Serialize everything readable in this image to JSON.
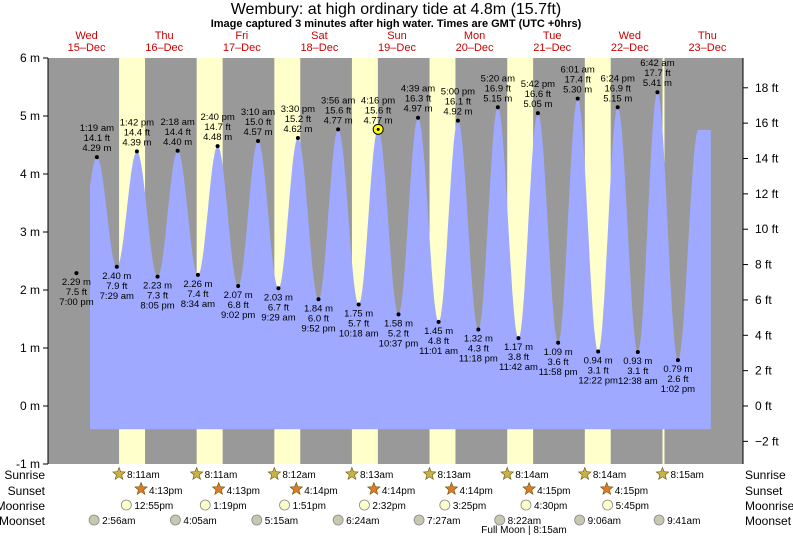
{
  "title": "Wembury: at high  ordinary tide at 4.8m (15.7ft)",
  "subtitle": "Image captured 3 minutes after high water. Times are GMT (UTC +0hrs)",
  "days": [
    {
      "dow": "Wed",
      "date": "15–Dec"
    },
    {
      "dow": "Thu",
      "date": "16–Dec"
    },
    {
      "dow": "Fri",
      "date": "17–Dec"
    },
    {
      "dow": "Sat",
      "date": "18–Dec"
    },
    {
      "dow": "Sun",
      "date": "19–Dec"
    },
    {
      "dow": "Mon",
      "date": "20–Dec"
    },
    {
      "dow": "Tue",
      "date": "21–Dec"
    },
    {
      "dow": "Wed",
      "date": "22–Dec"
    },
    {
      "dow": "Thu",
      "date": "23–Dec"
    }
  ],
  "colors": {
    "tide_fill": "#9fa9ff",
    "daylight": "#ffffcc",
    "night": "#999999",
    "day_label": "#cc0000",
    "current_marker": "#ffff00"
  },
  "chart_data": {
    "type": "area",
    "title": "Wembury: at high  ordinary tide at 4.8m (15.7ft)",
    "ylim_m": [
      -1,
      6
    ],
    "y_ticks_m": [
      "-1 m",
      "0 m",
      "1 m",
      "2 m",
      "3 m",
      "4 m",
      "5 m",
      "6 m"
    ],
    "ylim_ft": [
      -3.28,
      19.69
    ],
    "y_ticks_ft": [
      "−2 ft",
      "0 ft",
      "2 ft",
      "4 ft",
      "6 ft",
      "8 ft",
      "10 ft",
      "12 ft",
      "14 ft",
      "16 ft",
      "18 ft"
    ],
    "x_unit": "days from midnight 15-Dec (GMT)",
    "current_time": "19-Dec 4:19pm",
    "current_height_m": 4.77,
    "tides": [
      {
        "kind": "low",
        "x": 0.792,
        "m": 2.29,
        "ft": "7.5 ft",
        "time": "7:00 pm"
      },
      {
        "kind": "high",
        "x": 1.055,
        "m": 4.29,
        "ft": "14.1 ft",
        "time": "1:19 am"
      },
      {
        "kind": "low",
        "x": 1.312,
        "m": 2.4,
        "ft": "7.9 ft",
        "time": "7:29 am"
      },
      {
        "kind": "high",
        "x": 1.571,
        "m": 4.39,
        "ft": "14.4 ft",
        "time": "1:42 pm"
      },
      {
        "kind": "low",
        "x": 1.837,
        "m": 2.23,
        "ft": "7.3 ft",
        "time": "8:05 pm"
      },
      {
        "kind": "high",
        "x": 2.096,
        "m": 4.4,
        "ft": "14.4 ft",
        "time": "2:18 am"
      },
      {
        "kind": "low",
        "x": 2.357,
        "m": 2.26,
        "ft": "7.4 ft",
        "time": "8:34 am"
      },
      {
        "kind": "high",
        "x": 2.611,
        "m": 4.48,
        "ft": "14.7 ft",
        "time": "2:40 pm"
      },
      {
        "kind": "low",
        "x": 2.876,
        "m": 2.07,
        "ft": "6.8 ft",
        "time": "9:02 pm"
      },
      {
        "kind": "high",
        "x": 3.132,
        "m": 4.57,
        "ft": "15.0 ft",
        "time": "3:10 am"
      },
      {
        "kind": "low",
        "x": 3.395,
        "m": 2.03,
        "ft": "6.7 ft",
        "time": "9:29 am"
      },
      {
        "kind": "high",
        "x": 3.646,
        "m": 4.62,
        "ft": "15.2 ft",
        "time": "3:30 pm"
      },
      {
        "kind": "low",
        "x": 3.911,
        "m": 1.84,
        "ft": "6.0 ft",
        "time": "9:52 pm"
      },
      {
        "kind": "high",
        "x": 4.164,
        "m": 4.77,
        "ft": "15.6 ft",
        "time": "3:56 am"
      },
      {
        "kind": "low",
        "x": 4.429,
        "m": 1.75,
        "ft": "5.7 ft",
        "time": "10:18 am"
      },
      {
        "kind": "high",
        "x": 4.678,
        "m": 4.77,
        "ft": "15.6 ft",
        "time": "4:16 pm"
      },
      {
        "kind": "low",
        "x": 4.942,
        "m": 1.58,
        "ft": "5.2 ft",
        "time": "10:37 pm"
      },
      {
        "kind": "high",
        "x": 5.194,
        "m": 4.97,
        "ft": "16.3 ft",
        "time": "4:39 am"
      },
      {
        "kind": "low",
        "x": 5.459,
        "m": 1.45,
        "ft": "4.8 ft",
        "time": "11:01 am"
      },
      {
        "kind": "high",
        "x": 5.708,
        "m": 4.92,
        "ft": "16.1 ft",
        "time": "5:00 pm"
      },
      {
        "kind": "low",
        "x": 5.971,
        "m": 1.32,
        "ft": "4.3 ft",
        "time": "11:18 pm"
      },
      {
        "kind": "high",
        "x": 6.222,
        "m": 5.15,
        "ft": "16.9 ft",
        "time": "5:20 am"
      },
      {
        "kind": "low",
        "x": 6.488,
        "m": 1.17,
        "ft": "3.8 ft",
        "time": "11:42 am"
      },
      {
        "kind": "high",
        "x": 6.738,
        "m": 5.05,
        "ft": "16.6 ft",
        "time": "5:42 pm"
      },
      {
        "kind": "low",
        "x": 6.999,
        "m": 1.09,
        "ft": "3.6 ft",
        "time": "11:58 pm"
      },
      {
        "kind": "high",
        "x": 7.251,
        "m": 5.3,
        "ft": "17.4 ft",
        "time": "6:01 am"
      },
      {
        "kind": "low",
        "x": 7.515,
        "m": 0.94,
        "ft": "3.1 ft",
        "time": "12:22 pm"
      },
      {
        "kind": "high",
        "x": 7.767,
        "m": 5.15,
        "ft": "16.9 ft",
        "time": "6:24 pm"
      },
      {
        "kind": "low",
        "x": 8.026,
        "m": 0.93,
        "ft": "3.1 ft",
        "time": "12:38 am"
      },
      {
        "kind": "high",
        "x": 8.279,
        "m": 5.41,
        "ft": "17.7 ft",
        "time": "6:42 am"
      },
      {
        "kind": "low",
        "x": 8.543,
        "m": 0.79,
        "ft": "2.6 ft",
        "time": "1:02 pm"
      }
    ],
    "daylight": [
      {
        "sunrise": "8:11am",
        "sunset": "4:13pm",
        "rise_x": 1.341,
        "set_x": 1.676
      },
      {
        "sunrise": "8:11am",
        "sunset": "4:13pm",
        "rise_x": 2.341,
        "set_x": 2.676
      },
      {
        "sunrise": "8:12am",
        "sunset": "4:14pm",
        "rise_x": 3.342,
        "set_x": 3.676
      },
      {
        "sunrise": "8:13am",
        "sunset": "4:14pm",
        "rise_x": 4.342,
        "set_x": 4.676
      },
      {
        "sunrise": "8:13am",
        "sunset": "4:14pm",
        "rise_x": 5.342,
        "set_x": 5.676
      },
      {
        "sunrise": "8:14am",
        "sunset": "4:15pm",
        "rise_x": 6.343,
        "set_x": 6.677
      },
      {
        "sunrise": "8:14am",
        "sunset": "4:15pm",
        "rise_x": 7.343,
        "set_x": 7.677
      },
      {
        "sunrise": "8:15am",
        "sunset": "",
        "rise_x": 8.344,
        "set_x": null
      }
    ],
    "moonrise": [
      {
        "time": "12:55pm",
        "x": 1.538
      },
      {
        "time": "1:19pm",
        "x": 2.555
      },
      {
        "time": "1:51pm",
        "x": 3.577
      },
      {
        "time": "2:32pm",
        "x": 4.606
      },
      {
        "time": "3:25pm",
        "x": 5.642
      },
      {
        "time": "4:30pm",
        "x": 6.688
      },
      {
        "time": "5:45pm",
        "x": 7.74
      }
    ],
    "moonset": [
      {
        "time": "2:56am",
        "x": 1.122
      },
      {
        "time": "4:05am",
        "x": 2.17
      },
      {
        "time": "5:15am",
        "x": 3.219
      },
      {
        "time": "6:24am",
        "x": 4.267
      },
      {
        "time": "7:27am",
        "x": 5.31
      },
      {
        "time": "8:22am",
        "x": 6.349
      },
      {
        "time": "9:06am",
        "x": 7.379
      },
      {
        "time": "9:41am",
        "x": 8.403
      }
    ],
    "moon_phase": "Full Moon | 8:15am"
  },
  "rows": {
    "sunrise": "Sunrise",
    "sunset": "Sunset",
    "moonrise": "Moonrise",
    "moonset": "Moonset"
  }
}
